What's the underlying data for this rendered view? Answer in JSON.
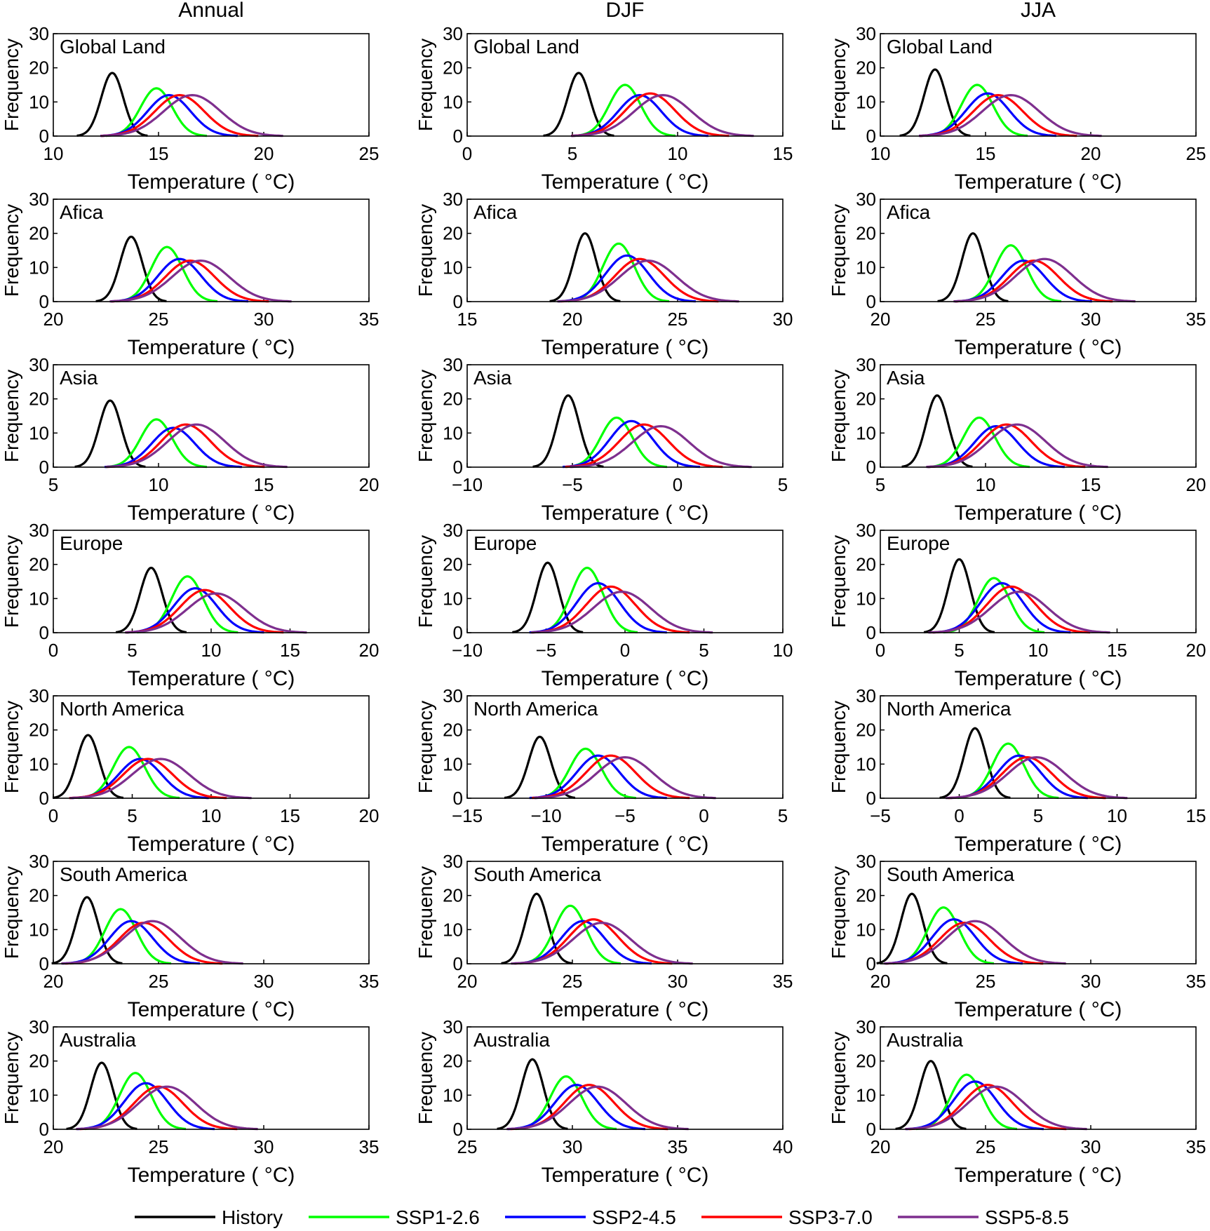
{
  "figure": {
    "column_titles": [
      "Annual",
      "DJF",
      "JJA"
    ],
    "ylabel": "Frequency",
    "xlabel": "Temperature ( °C)",
    "y_ticks": [
      0,
      10,
      20,
      30
    ],
    "ylim": [
      0,
      30
    ],
    "grid": false,
    "legend_position": "bottom",
    "legend": [
      {
        "name": "History",
        "color": "#000000"
      },
      {
        "name": "SSP1-2.6",
        "color": "#00ff00"
      },
      {
        "name": "SSP2-4.5",
        "color": "#0000ff"
      },
      {
        "name": "SSP3-7.0",
        "color": "#ff0000"
      },
      {
        "name": "SSP5-8.5",
        "color": "#7e2f8e"
      }
    ]
  },
  "chart_data": [
    {
      "type": "line",
      "column": "Annual",
      "region": "Global Land",
      "xlim": [
        10,
        25
      ],
      "x_ticks": [
        10,
        15,
        20,
        25
      ],
      "ylim": [
        0,
        30
      ],
      "series": [
        {
          "name": "History",
          "mean": 12.8,
          "peak": 18.5
        },
        {
          "name": "SSP1-2.6",
          "mean": 14.9,
          "peak": 14.0
        },
        {
          "name": "SSP2-4.5",
          "mean": 15.5,
          "peak": 12.0
        },
        {
          "name": "SSP3-7.0",
          "mean": 16.0,
          "peak": 12.0
        },
        {
          "name": "SSP5-8.5",
          "mean": 16.6,
          "peak": 12.0
        }
      ]
    },
    {
      "type": "line",
      "column": "DJF",
      "region": "Global Land",
      "xlim": [
        0,
        15
      ],
      "x_ticks": [
        0,
        5,
        10,
        15
      ],
      "ylim": [
        0,
        30
      ],
      "series": [
        {
          "name": "History",
          "mean": 5.3,
          "peak": 18.5
        },
        {
          "name": "SSP1-2.6",
          "mean": 7.5,
          "peak": 15.0
        },
        {
          "name": "SSP2-4.5",
          "mean": 8.2,
          "peak": 12.0
        },
        {
          "name": "SSP3-7.0",
          "mean": 8.7,
          "peak": 12.5
        },
        {
          "name": "SSP5-8.5",
          "mean": 9.3,
          "peak": 12.0
        }
      ]
    },
    {
      "type": "line",
      "column": "JJA",
      "region": "Global Land",
      "xlim": [
        10,
        25
      ],
      "x_ticks": [
        10,
        15,
        20,
        25
      ],
      "ylim": [
        0,
        30
      ],
      "series": [
        {
          "name": "History",
          "mean": 12.6,
          "peak": 19.5
        },
        {
          "name": "SSP1-2.6",
          "mean": 14.6,
          "peak": 15.0
        },
        {
          "name": "SSP2-4.5",
          "mean": 15.1,
          "peak": 12.5
        },
        {
          "name": "SSP3-7.0",
          "mean": 15.6,
          "peak": 12.0
        },
        {
          "name": "SSP5-8.5",
          "mean": 16.2,
          "peak": 12.0
        }
      ]
    },
    {
      "type": "line",
      "column": "Annual",
      "region": "Afica",
      "xlim": [
        20,
        35
      ],
      "x_ticks": [
        20,
        25,
        30,
        35
      ],
      "ylim": [
        0,
        30
      ],
      "series": [
        {
          "name": "History",
          "mean": 23.7,
          "peak": 19.0
        },
        {
          "name": "SSP1-2.6",
          "mean": 25.4,
          "peak": 16.0
        },
        {
          "name": "SSP2-4.5",
          "mean": 26.0,
          "peak": 12.5
        },
        {
          "name": "SSP3-7.0",
          "mean": 26.5,
          "peak": 12.0
        },
        {
          "name": "SSP5-8.5",
          "mean": 27.0,
          "peak": 12.0
        }
      ]
    },
    {
      "type": "line",
      "column": "DJF",
      "region": "Afica",
      "xlim": [
        15,
        30
      ],
      "x_ticks": [
        15,
        20,
        25,
        30
      ],
      "ylim": [
        0,
        30
      ],
      "series": [
        {
          "name": "History",
          "mean": 20.6,
          "peak": 20.0
        },
        {
          "name": "SSP1-2.6",
          "mean": 22.2,
          "peak": 17.0
        },
        {
          "name": "SSP2-4.5",
          "mean": 22.6,
          "peak": 13.5
        },
        {
          "name": "SSP3-7.0",
          "mean": 23.2,
          "peak": 12.5
        },
        {
          "name": "SSP5-8.5",
          "mean": 23.6,
          "peak": 12.0
        }
      ]
    },
    {
      "type": "line",
      "column": "JJA",
      "region": "Afica",
      "xlim": [
        20,
        35
      ],
      "x_ticks": [
        20,
        25,
        30,
        35
      ],
      "ylim": [
        0,
        30
      ],
      "series": [
        {
          "name": "History",
          "mean": 24.4,
          "peak": 20.0
        },
        {
          "name": "SSP1-2.6",
          "mean": 26.2,
          "peak": 16.5
        },
        {
          "name": "SSP2-4.5",
          "mean": 26.8,
          "peak": 12.0
        },
        {
          "name": "SSP3-7.0",
          "mean": 27.3,
          "peak": 12.0
        },
        {
          "name": "SSP5-8.5",
          "mean": 27.8,
          "peak": 12.5
        }
      ]
    },
    {
      "type": "line",
      "column": "Annual",
      "region": "Asia",
      "xlim": [
        5,
        20
      ],
      "x_ticks": [
        5,
        10,
        15,
        20
      ],
      "ylim": [
        0,
        30
      ],
      "series": [
        {
          "name": "History",
          "mean": 7.7,
          "peak": 19.5
        },
        {
          "name": "SSP1-2.6",
          "mean": 9.9,
          "peak": 14.0
        },
        {
          "name": "SSP2-4.5",
          "mean": 10.7,
          "peak": 11.5
        },
        {
          "name": "SSP3-7.0",
          "mean": 11.3,
          "peak": 12.5
        },
        {
          "name": "SSP5-8.5",
          "mean": 11.8,
          "peak": 12.5
        }
      ]
    },
    {
      "type": "line",
      "column": "DJF",
      "region": "Asia",
      "xlim": [
        -10,
        5
      ],
      "x_ticks": [
        -10,
        -5,
        0,
        5
      ],
      "ylim": [
        0,
        30
      ],
      "series": [
        {
          "name": "History",
          "mean": -5.2,
          "peak": 21.0
        },
        {
          "name": "SSP1-2.6",
          "mean": -2.9,
          "peak": 14.5
        },
        {
          "name": "SSP2-4.5",
          "mean": -2.2,
          "peak": 13.5
        },
        {
          "name": "SSP3-7.0",
          "mean": -1.6,
          "peak": 12.5
        },
        {
          "name": "SSP5-8.5",
          "mean": -0.8,
          "peak": 12.0
        }
      ]
    },
    {
      "type": "line",
      "column": "JJA",
      "region": "Asia",
      "xlim": [
        5,
        20
      ],
      "x_ticks": [
        5,
        10,
        15,
        20
      ],
      "ylim": [
        0,
        30
      ],
      "series": [
        {
          "name": "History",
          "mean": 7.7,
          "peak": 21.0
        },
        {
          "name": "SSP1-2.6",
          "mean": 9.7,
          "peak": 14.5
        },
        {
          "name": "SSP2-4.5",
          "mean": 10.5,
          "peak": 12.0
        },
        {
          "name": "SSP3-7.0",
          "mean": 11.0,
          "peak": 12.5
        },
        {
          "name": "SSP5-8.5",
          "mean": 11.5,
          "peak": 12.5
        }
      ]
    },
    {
      "type": "line",
      "column": "Annual",
      "region": "Europe",
      "xlim": [
        0,
        20
      ],
      "x_ticks": [
        0,
        5,
        10,
        15,
        20
      ],
      "ylim": [
        0,
        30
      ],
      "series": [
        {
          "name": "History",
          "mean": 6.2,
          "peak": 19.0
        },
        {
          "name": "SSP1-2.6",
          "mean": 8.5,
          "peak": 16.5
        },
        {
          "name": "SSP2-4.5",
          "mean": 9.0,
          "peak": 13.0
        },
        {
          "name": "SSP3-7.0",
          "mean": 9.6,
          "peak": 12.5
        },
        {
          "name": "SSP5-8.5",
          "mean": 10.3,
          "peak": 11.5
        }
      ]
    },
    {
      "type": "line",
      "column": "DJF",
      "region": "Europe",
      "xlim": [
        -10,
        10
      ],
      "x_ticks": [
        -10,
        -5,
        0,
        5,
        10
      ],
      "ylim": [
        0,
        30
      ],
      "series": [
        {
          "name": "History",
          "mean": -4.9,
          "peak": 20.5
        },
        {
          "name": "SSP1-2.6",
          "mean": -2.4,
          "peak": 19.0
        },
        {
          "name": "SSP2-4.5",
          "mean": -1.7,
          "peak": 14.5
        },
        {
          "name": "SSP3-7.0",
          "mean": -0.9,
          "peak": 13.5
        },
        {
          "name": "SSP5-8.5",
          "mean": -0.2,
          "peak": 12.0
        }
      ]
    },
    {
      "type": "line",
      "column": "JJA",
      "region": "Europe",
      "xlim": [
        0,
        20
      ],
      "x_ticks": [
        0,
        5,
        10,
        15,
        20
      ],
      "ylim": [
        0,
        30
      ],
      "series": [
        {
          "name": "History",
          "mean": 5.0,
          "peak": 21.5
        },
        {
          "name": "SSP1-2.6",
          "mean": 7.2,
          "peak": 16.0
        },
        {
          "name": "SSP2-4.5",
          "mean": 7.7,
          "peak": 14.5
        },
        {
          "name": "SSP3-7.0",
          "mean": 8.3,
          "peak": 13.5
        },
        {
          "name": "SSP5-8.5",
          "mean": 8.8,
          "peak": 12.0
        }
      ]
    },
    {
      "type": "line",
      "column": "Annual",
      "region": "North America",
      "xlim": [
        0,
        20
      ],
      "x_ticks": [
        0,
        5,
        10,
        15,
        20
      ],
      "ylim": [
        0,
        30
      ],
      "series": [
        {
          "name": "History",
          "mean": 2.2,
          "peak": 18.5
        },
        {
          "name": "SSP1-2.6",
          "mean": 4.8,
          "peak": 15.0
        },
        {
          "name": "SSP2-4.5",
          "mean": 5.5,
          "peak": 11.5
        },
        {
          "name": "SSP3-7.0",
          "mean": 6.0,
          "peak": 11.5
        },
        {
          "name": "SSP5-8.5",
          "mean": 6.8,
          "peak": 11.5
        }
      ]
    },
    {
      "type": "line",
      "column": "DJF",
      "region": "North America",
      "xlim": [
        -15,
        5
      ],
      "x_ticks": [
        -15,
        -10,
        -5,
        0,
        5
      ],
      "ylim": [
        0,
        30
      ],
      "series": [
        {
          "name": "History",
          "mean": -10.4,
          "peak": 18.0
        },
        {
          "name": "SSP1-2.6",
          "mean": -7.5,
          "peak": 14.5
        },
        {
          "name": "SSP2-4.5",
          "mean": -6.7,
          "peak": 12.5
        },
        {
          "name": "SSP3-7.0",
          "mean": -5.9,
          "peak": 12.5
        },
        {
          "name": "SSP5-8.5",
          "mean": -5.0,
          "peak": 12.0
        }
      ]
    },
    {
      "type": "line",
      "column": "JJA",
      "region": "North America",
      "xlim": [
        -5,
        15
      ],
      "x_ticks": [
        -5,
        0,
        5,
        10,
        15
      ],
      "ylim": [
        0,
        30
      ],
      "series": [
        {
          "name": "History",
          "mean": 1.0,
          "peak": 20.5
        },
        {
          "name": "SSP1-2.6",
          "mean": 3.1,
          "peak": 16.0
        },
        {
          "name": "SSP2-4.5",
          "mean": 3.8,
          "peak": 12.5
        },
        {
          "name": "SSP3-7.0",
          "mean": 4.3,
          "peak": 12.0
        },
        {
          "name": "SSP5-8.5",
          "mean": 4.9,
          "peak": 12.0
        }
      ]
    },
    {
      "type": "line",
      "column": "Annual",
      "region": "South America",
      "xlim": [
        20,
        35
      ],
      "x_ticks": [
        20,
        25,
        30,
        35
      ],
      "ylim": [
        0,
        30
      ],
      "series": [
        {
          "name": "History",
          "mean": 21.6,
          "peak": 19.5
        },
        {
          "name": "SSP1-2.6",
          "mean": 23.2,
          "peak": 16.0
        },
        {
          "name": "SSP2-4.5",
          "mean": 23.7,
          "peak": 12.5
        },
        {
          "name": "SSP3-7.0",
          "mean": 24.3,
          "peak": 12.0
        },
        {
          "name": "SSP5-8.5",
          "mean": 24.7,
          "peak": 12.5
        }
      ]
    },
    {
      "type": "line",
      "column": "DJF",
      "region": "South America",
      "xlim": [
        20,
        35
      ],
      "x_ticks": [
        20,
        25,
        30,
        35
      ],
      "ylim": [
        0,
        30
      ],
      "series": [
        {
          "name": "History",
          "mean": 23.3,
          "peak": 20.5
        },
        {
          "name": "SSP1-2.6",
          "mean": 24.9,
          "peak": 17.0
        },
        {
          "name": "SSP2-4.5",
          "mean": 25.5,
          "peak": 12.5
        },
        {
          "name": "SSP3-7.0",
          "mean": 26.0,
          "peak": 13.0
        },
        {
          "name": "SSP5-8.5",
          "mean": 26.4,
          "peak": 12.0
        }
      ]
    },
    {
      "type": "line",
      "column": "JJA",
      "region": "South America",
      "xlim": [
        20,
        35
      ],
      "x_ticks": [
        20,
        25,
        30,
        35
      ],
      "ylim": [
        0,
        30
      ],
      "series": [
        {
          "name": "History",
          "mean": 21.5,
          "peak": 20.5
        },
        {
          "name": "SSP1-2.6",
          "mean": 23.0,
          "peak": 16.5
        },
        {
          "name": "SSP2-4.5",
          "mean": 23.5,
          "peak": 13.0
        },
        {
          "name": "SSP3-7.0",
          "mean": 24.0,
          "peak": 12.0
        },
        {
          "name": "SSP5-8.5",
          "mean": 24.5,
          "peak": 12.5
        }
      ]
    },
    {
      "type": "line",
      "column": "Annual",
      "region": "Australia",
      "xlim": [
        20,
        35
      ],
      "x_ticks": [
        20,
        25,
        30,
        35
      ],
      "ylim": [
        0,
        30
      ],
      "series": [
        {
          "name": "History",
          "mean": 22.3,
          "peak": 19.5
        },
        {
          "name": "SSP1-2.6",
          "mean": 23.9,
          "peak": 16.5
        },
        {
          "name": "SSP2-4.5",
          "mean": 24.4,
          "peak": 13.5
        },
        {
          "name": "SSP3-7.0",
          "mean": 25.0,
          "peak": 12.5
        },
        {
          "name": "SSP5-8.5",
          "mean": 25.4,
          "peak": 12.5
        }
      ]
    },
    {
      "type": "line",
      "column": "DJF",
      "region": "Australia",
      "xlim": [
        25,
        40
      ],
      "x_ticks": [
        25,
        30,
        35,
        40
      ],
      "ylim": [
        0,
        30
      ],
      "series": [
        {
          "name": "History",
          "mean": 28.1,
          "peak": 20.5
        },
        {
          "name": "SSP1-2.6",
          "mean": 29.7,
          "peak": 15.5
        },
        {
          "name": "SSP2-4.5",
          "mean": 30.2,
          "peak": 13.0
        },
        {
          "name": "SSP3-7.0",
          "mean": 30.8,
          "peak": 13.0
        },
        {
          "name": "SSP5-8.5",
          "mean": 31.2,
          "peak": 12.5
        }
      ]
    },
    {
      "type": "line",
      "column": "JJA",
      "region": "Australia",
      "xlim": [
        20,
        35
      ],
      "x_ticks": [
        20,
        25,
        30,
        35
      ],
      "ylim": [
        0,
        30
      ],
      "series": [
        {
          "name": "History",
          "mean": 22.4,
          "peak": 20.0
        },
        {
          "name": "SSP1-2.6",
          "mean": 24.1,
          "peak": 16.0
        },
        {
          "name": "SSP2-4.5",
          "mean": 24.5,
          "peak": 14.0
        },
        {
          "name": "SSP3-7.0",
          "mean": 25.1,
          "peak": 13.0
        },
        {
          "name": "SSP5-8.5",
          "mean": 25.5,
          "peak": 12.5
        }
      ]
    }
  ]
}
